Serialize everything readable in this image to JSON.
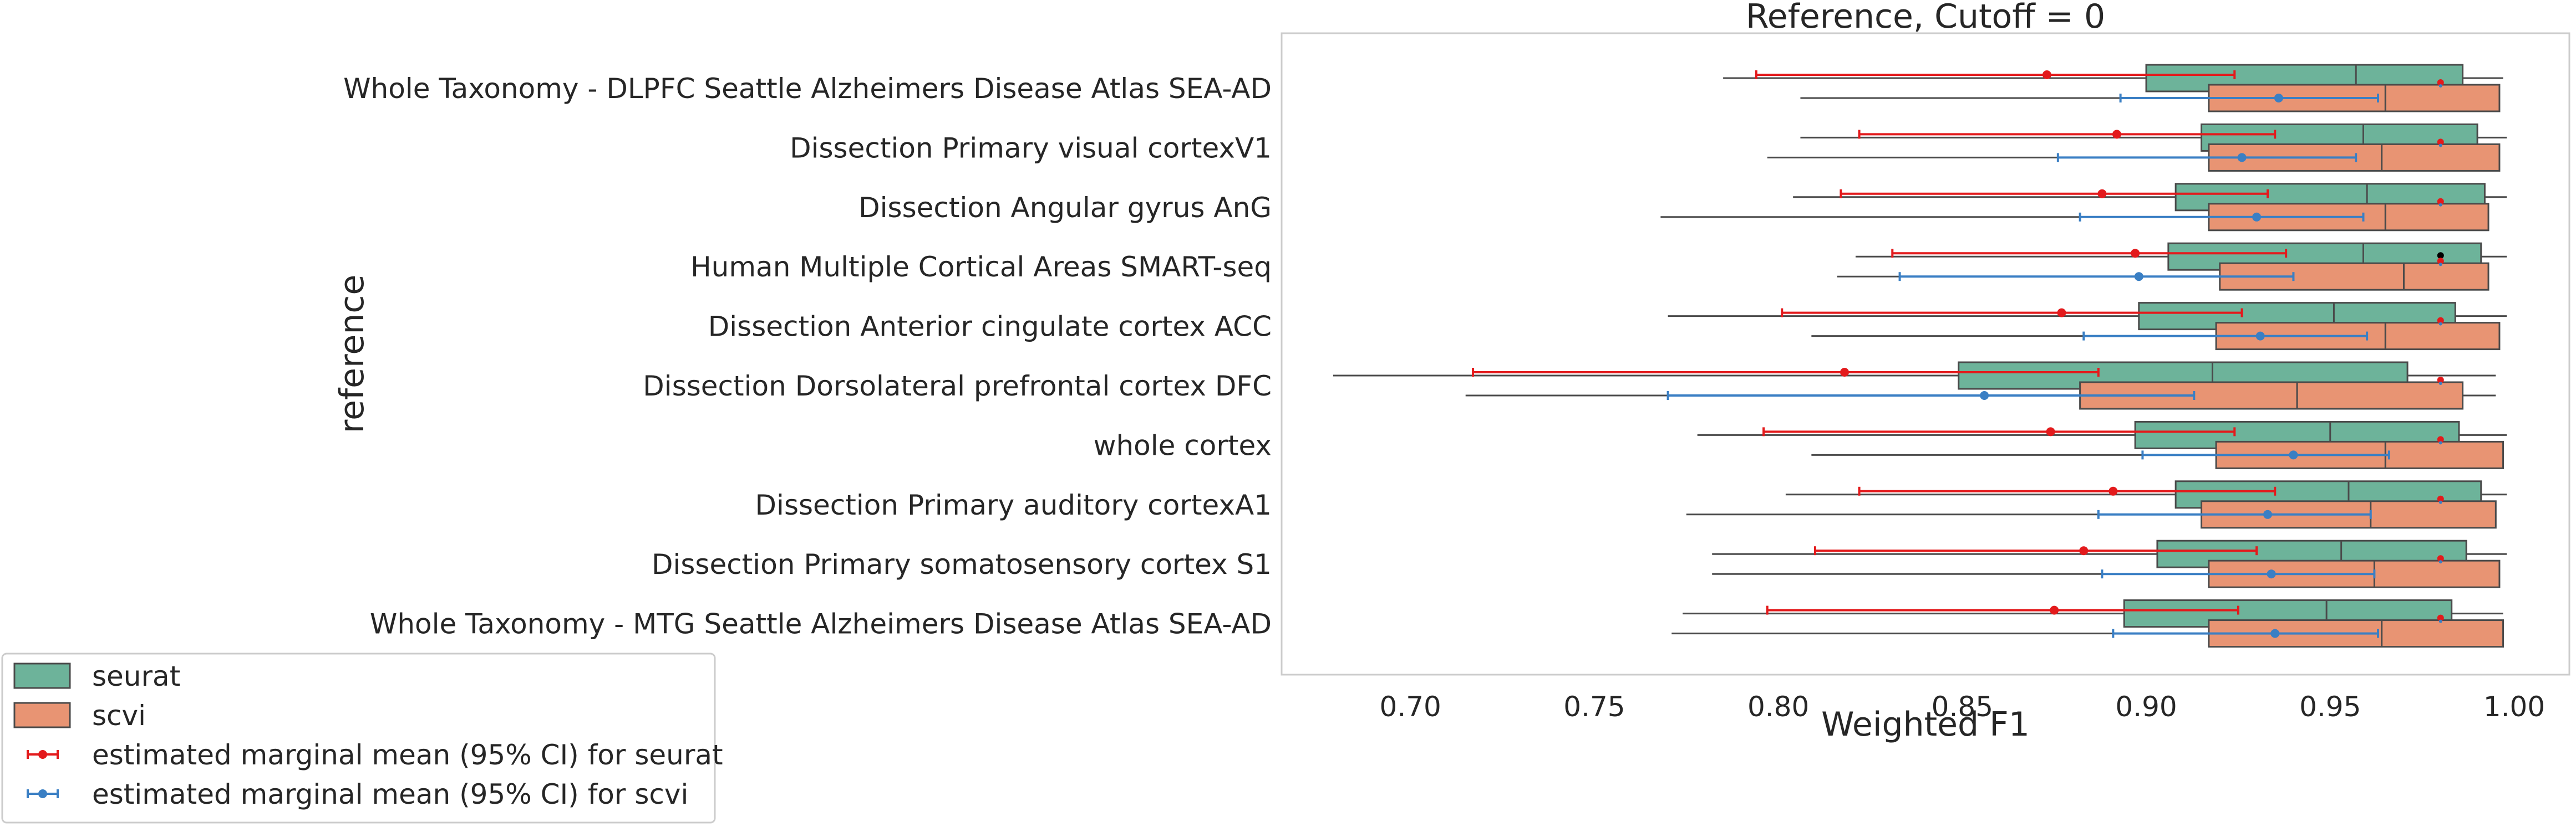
{
  "chart_data": {
    "type": "boxplot",
    "title": "Reference, Cutoff = 0",
    "xlabel": "Weighted F1",
    "ylabel": "reference",
    "xlim": [
      0.665,
      1.015
    ],
    "xticks": [
      "0.70",
      "0.75",
      "0.80",
      "0.85",
      "0.90",
      "0.95",
      "1.00"
    ],
    "xtick_values": [
      0.7,
      0.75,
      0.8,
      0.85,
      0.9,
      0.95,
      1.0
    ],
    "grid": false,
    "legend_position": "bottom-left, outside plot",
    "colors": {
      "seurat_box": "#6db39a",
      "scvi_box": "#e89473",
      "box_edge": "#4a4a4a",
      "seurat_emm": "#e31a1c",
      "scvi_emm": "#3a7fc4"
    },
    "categories": [
      "Whole Taxonomy - DLPFC Seattle Alzheimers Disease Atlas SEA-AD",
      "Dissection Primary visual cortexV1",
      "Dissection Angular gyrus AnG",
      "Human Multiple Cortical Areas SMART-seq",
      "Dissection Anterior cingulate cortex ACC",
      "Dissection Dorsolateral prefrontal cortex DFC",
      "whole cortex",
      "Dissection Primary auditory cortexA1",
      "Dissection Primary somatosensory cortex S1",
      "Whole Taxonomy - MTG Seattle Alzheimers Disease Atlas SEA-AD"
    ],
    "series": [
      {
        "name": "seurat",
        "boxes": [
          {
            "wlo": 0.785,
            "q1": 0.9,
            "med": 0.957,
            "q3": 0.986,
            "whi": 0.997
          },
          {
            "wlo": 0.806,
            "q1": 0.915,
            "med": 0.959,
            "q3": 0.99,
            "whi": 0.998
          },
          {
            "wlo": 0.804,
            "q1": 0.908,
            "med": 0.96,
            "q3": 0.992,
            "whi": 0.998
          },
          {
            "wlo": 0.821,
            "q1": 0.906,
            "med": 0.959,
            "q3": 0.991,
            "whi": 0.998
          },
          {
            "wlo": 0.77,
            "q1": 0.898,
            "med": 0.951,
            "q3": 0.984,
            "whi": 0.998
          },
          {
            "wlo": 0.679,
            "q1": 0.849,
            "med": 0.918,
            "q3": 0.971,
            "whi": 0.995
          },
          {
            "wlo": 0.778,
            "q1": 0.897,
            "med": 0.95,
            "q3": 0.985,
            "whi": 0.998
          },
          {
            "wlo": 0.802,
            "q1": 0.908,
            "med": 0.955,
            "q3": 0.991,
            "whi": 0.998
          },
          {
            "wlo": 0.782,
            "q1": 0.903,
            "med": 0.953,
            "q3": 0.987,
            "whi": 0.998
          },
          {
            "wlo": 0.774,
            "q1": 0.894,
            "med": 0.949,
            "q3": 0.983,
            "whi": 0.997
          }
        ]
      },
      {
        "name": "scvi",
        "boxes": [
          {
            "wlo": 0.806,
            "q1": 0.917,
            "med": 0.965,
            "q3": 0.996,
            "whi": 0.996
          },
          {
            "wlo": 0.797,
            "q1": 0.917,
            "med": 0.964,
            "q3": 0.996,
            "whi": 0.996
          },
          {
            "wlo": 0.768,
            "q1": 0.917,
            "med": 0.965,
            "q3": 0.993,
            "whi": 0.993
          },
          {
            "wlo": 0.816,
            "q1": 0.92,
            "med": 0.97,
            "q3": 0.993,
            "whi": 0.993
          },
          {
            "wlo": 0.809,
            "q1": 0.919,
            "med": 0.965,
            "q3": 0.996,
            "whi": 0.996
          },
          {
            "wlo": 0.715,
            "q1": 0.882,
            "med": 0.941,
            "q3": 0.986,
            "whi": 0.995
          },
          {
            "wlo": 0.809,
            "q1": 0.919,
            "med": 0.965,
            "q3": 0.997,
            "whi": 0.997
          },
          {
            "wlo": 0.775,
            "q1": 0.915,
            "med": 0.961,
            "q3": 0.995,
            "whi": 0.995
          },
          {
            "wlo": 0.782,
            "q1": 0.917,
            "med": 0.962,
            "q3": 0.996,
            "whi": 0.996
          },
          {
            "wlo": 0.771,
            "q1": 0.917,
            "med": 0.964,
            "q3": 0.997,
            "whi": 0.997
          }
        ]
      }
    ],
    "outliers": [
      {
        "category_index": 3,
        "series": "seurat",
        "x": 0.98
      }
    ],
    "emm": [
      {
        "name": "estimated marginal mean (95% CI) for seurat",
        "values": [
          {
            "mean": 0.873,
            "lo": 0.794,
            "hi": 0.924
          },
          {
            "mean": 0.892,
            "lo": 0.822,
            "hi": 0.935
          },
          {
            "mean": 0.888,
            "lo": 0.817,
            "hi": 0.933
          },
          {
            "mean": 0.897,
            "lo": 0.831,
            "hi": 0.938
          },
          {
            "mean": 0.877,
            "lo": 0.801,
            "hi": 0.926
          },
          {
            "mean": 0.818,
            "lo": 0.717,
            "hi": 0.887
          },
          {
            "mean": 0.874,
            "lo": 0.796,
            "hi": 0.924
          },
          {
            "mean": 0.891,
            "lo": 0.822,
            "hi": 0.935
          },
          {
            "mean": 0.883,
            "lo": 0.81,
            "hi": 0.93
          },
          {
            "mean": 0.875,
            "lo": 0.797,
            "hi": 0.925
          }
        ]
      },
      {
        "name": "estimated marginal mean (95% CI) for scvi",
        "values": [
          {
            "mean": 0.936,
            "lo": 0.893,
            "hi": 0.963
          },
          {
            "mean": 0.926,
            "lo": 0.876,
            "hi": 0.957
          },
          {
            "mean": 0.93,
            "lo": 0.882,
            "hi": 0.959
          },
          {
            "mean": 0.898,
            "lo": 0.833,
            "hi": 0.94
          },
          {
            "mean": 0.931,
            "lo": 0.883,
            "hi": 0.96
          },
          {
            "mean": 0.856,
            "lo": 0.77,
            "hi": 0.913
          },
          {
            "mean": 0.94,
            "lo": 0.899,
            "hi": 0.966
          },
          {
            "mean": 0.933,
            "lo": 0.887,
            "hi": 0.961
          },
          {
            "mean": 0.934,
            "lo": 0.888,
            "hi": 0.962
          },
          {
            "mean": 0.935,
            "lo": 0.891,
            "hi": 0.963
          }
        ]
      }
    ],
    "group_markers": [
      {
        "seurat": 0.98,
        "scvi": 0.98
      },
      {
        "seurat": 0.98,
        "scvi": 0.98
      },
      {
        "seurat": 0.98,
        "scvi": 0.98
      },
      {
        "seurat": 0.98,
        "scvi": 0.98
      },
      {
        "seurat": 0.98,
        "scvi": 0.98
      },
      {
        "seurat": 0.98,
        "scvi": 0.98
      },
      {
        "seurat": 0.98,
        "scvi": 0.98
      },
      {
        "seurat": 0.98,
        "scvi": 0.98
      },
      {
        "seurat": 0.98,
        "scvi": 0.98
      },
      {
        "seurat": 0.98,
        "scvi": 0.98
      }
    ],
    "legend": [
      {
        "label": "seurat",
        "kind": "box",
        "color_key": "seurat_box"
      },
      {
        "label": "scvi",
        "kind": "box",
        "color_key": "scvi_box"
      },
      {
        "label": "estimated marginal mean (95% CI) for seurat",
        "kind": "errorbar",
        "color_key": "seurat_emm"
      },
      {
        "label": "estimated marginal mean (95% CI) for scvi",
        "kind": "errorbar",
        "color_key": "scvi_emm"
      }
    ]
  }
}
